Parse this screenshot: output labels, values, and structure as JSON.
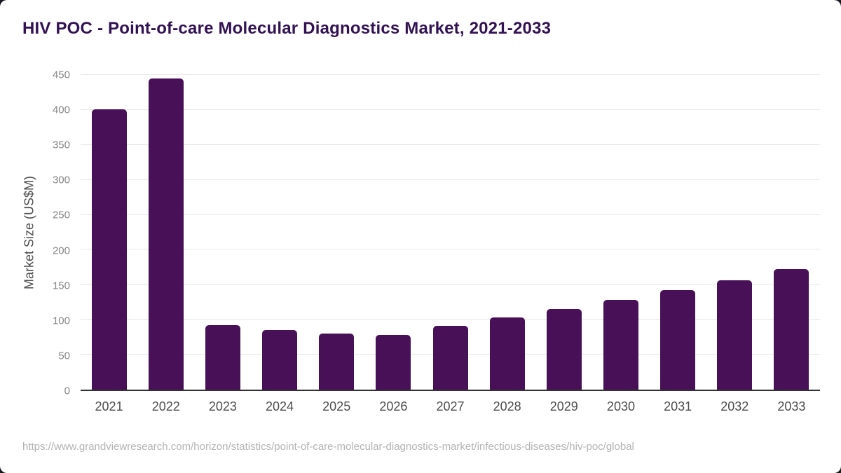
{
  "card": {
    "title": "HIV POC - Point-of-care Molecular Diagnostics Market, 2021-2033",
    "source_url": "https://www.grandviewresearch.com/horizon/statistics/point-of-care-molecular-diagnostics-market/infectious-diseases/hiv-poc/global"
  },
  "colors": {
    "title_color": "#331253",
    "bar": "#481157",
    "grid": "#e6e6e6",
    "axis_line": "#333333",
    "y_tick": "#858585",
    "x_tick": "#4d4d4d",
    "axis_title": "#4d4d4d",
    "source": "#b3b3b3"
  },
  "chart_data": {
    "type": "bar",
    "title": "HIV POC - Point-of-care Molecular Diagnostics Market, 2021-2033",
    "categories": [
      "2021",
      "2022",
      "2023",
      "2024",
      "2025",
      "2026",
      "2027",
      "2028",
      "2029",
      "2030",
      "2031",
      "2032",
      "2033"
    ],
    "values": [
      401,
      445,
      92,
      85,
      80,
      78,
      91,
      103,
      115,
      128,
      142,
      156,
      172
    ],
    "xlabel": "",
    "ylabel": "Market Size (US$M)",
    "ylim": [
      0,
      450
    ],
    "ytick_step": 50,
    "grid": "horizontal-only",
    "legend": "none",
    "bar_color": "#481157"
  }
}
